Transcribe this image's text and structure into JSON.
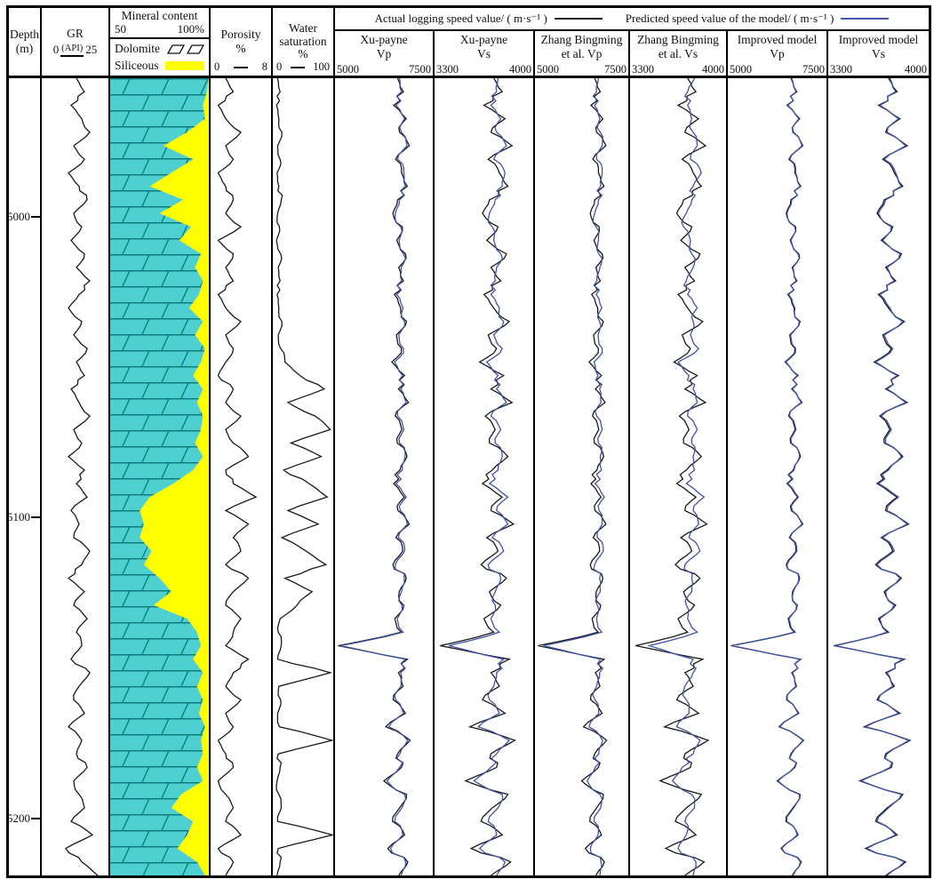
{
  "header": {
    "depth": {
      "line1": "Depth",
      "line2": "(m)"
    },
    "gr": {
      "title": "GR",
      "unit": "(API)",
      "min": "0",
      "max": "25"
    },
    "mineral": {
      "title": "Mineral content",
      "min": "50",
      "max": "100%",
      "dolomite_label": "Dolomite",
      "siliceous_label": "Siliceous"
    },
    "porosity": {
      "line1": "Porosity",
      "line2": "%",
      "min": "0",
      "max": "8"
    },
    "water": {
      "line1": "Water",
      "line2": "saturation",
      "line3": "%",
      "min": "0",
      "max": "100"
    },
    "legend": {
      "actual_label": "Actual logging speed value/ ( m·s⁻¹ )",
      "predicted_label": "Predicted speed value of the model/ ( m·s⁻¹ )"
    },
    "velocity_tracks": [
      {
        "line1": "Xu-payne",
        "line2": "Vp",
        "min": "5000",
        "max": "7500"
      },
      {
        "line1": "Xu-payne",
        "line2": "Vs",
        "min": "3300",
        "max": "4000"
      },
      {
        "line1": "Zhang Bingming",
        "line2": "et al. Vp",
        "min": "5000",
        "max": "7500"
      },
      {
        "line1": "Zhang Bingming",
        "line2": "et al. Vs",
        "min": "3300",
        "max": "4000"
      },
      {
        "line1": "Improved model",
        "line2": "Vp",
        "min": "5000",
        "max": "7500"
      },
      {
        "line1": "Improved model",
        "line2": "Vs",
        "min": "3300",
        "max": "4000"
      }
    ]
  },
  "chart_data": {
    "type": "line",
    "description": "Well-log depth tracks comparing actual logging speed (black) with model-predicted speed (blue) for Xu-payne, Zhang Bingming et al. and improved models",
    "depth_axis": {
      "label": "Depth (m)",
      "top": 4954,
      "bottom": 5219,
      "ticks": [
        5000,
        5100,
        5200
      ]
    },
    "legend": {
      "actual_color": "#1a1a1a",
      "predicted_color": "#4053ab"
    },
    "colors": {
      "dolomite_fill": "#4ed0d0",
      "brick_line": "#0b7d7d",
      "siliceous_fill": "#ffff00"
    },
    "samples": {
      "n": 60,
      "depth_start": 4954,
      "depth_end": 5219
    },
    "tracks": [
      {
        "id": "gr",
        "title": "GR (API)",
        "xlim": [
          0,
          25
        ],
        "curves": [
          {
            "series": "gr",
            "name": "GR",
            "color": "#1a1a1a"
          }
        ]
      },
      {
        "id": "mineral",
        "title": "Mineral content %",
        "xlim": [
          50,
          100
        ],
        "siliceous_series": "siliceous_pct",
        "legend": [
          "Dolomite",
          "Siliceous"
        ]
      },
      {
        "id": "porosity",
        "title": "Porosity %",
        "xlim": [
          0,
          8
        ],
        "curves": [
          {
            "series": "porosity",
            "name": "Porosity",
            "color": "#1a1a1a"
          }
        ]
      },
      {
        "id": "water_saturation",
        "title": "Water saturation %",
        "xlim": [
          0,
          100
        ],
        "curves": [
          {
            "series": "water_saturation",
            "name": "Water saturation",
            "color": "#1a1a1a"
          }
        ]
      },
      {
        "id": "xu_vp",
        "title": "Xu-payne Vp",
        "xlim": [
          5000,
          7500
        ],
        "curves": [
          {
            "series": "vp_actual",
            "name": "Actual Vp",
            "color": "#1a1a1a"
          },
          {
            "series": "vp_pred_xu",
            "name": "Xu-payne predicted Vp",
            "color": "#4053ab"
          }
        ]
      },
      {
        "id": "xu_vs",
        "title": "Xu-payne Vs",
        "xlim": [
          3300,
          4000
        ],
        "curves": [
          {
            "series": "vs_actual",
            "name": "Actual Vs",
            "color": "#1a1a1a"
          },
          {
            "series": "vs_pred_xu",
            "name": "Xu-payne predicted Vs",
            "color": "#4053ab"
          }
        ]
      },
      {
        "id": "zhang_vp",
        "title": "Zhang Bingming et al. Vp",
        "xlim": [
          5000,
          7500
        ],
        "curves": [
          {
            "series": "vp_actual",
            "name": "Actual Vp",
            "color": "#1a1a1a"
          },
          {
            "series": "vp_pred_zhang",
            "name": "Zhang Bingming et al. predicted Vp",
            "color": "#4053ab"
          }
        ]
      },
      {
        "id": "zhang_vs",
        "title": "Zhang Bingming et al. Vs",
        "xlim": [
          3300,
          4000
        ],
        "curves": [
          {
            "series": "vs_actual",
            "name": "Actual Vs",
            "color": "#1a1a1a"
          },
          {
            "series": "vs_pred_zhang",
            "name": "Zhang Bingming et al. predicted Vs",
            "color": "#4053ab"
          }
        ]
      },
      {
        "id": "improved_vp",
        "title": "Improved model Vp",
        "xlim": [
          5000,
          7500
        ],
        "curves": [
          {
            "series": "vp_actual",
            "name": "Actual Vp",
            "color": "#1a1a1a"
          },
          {
            "series": "vp_pred_improved",
            "name": "Improved model predicted Vp",
            "color": "#4053ab"
          }
        ]
      },
      {
        "id": "improved_vs",
        "title": "Improved model Vs",
        "xlim": [
          3300,
          4000
        ],
        "curves": [
          {
            "series": "vs_actual",
            "name": "Actual Vs",
            "color": "#1a1a1a"
          },
          {
            "series": "vs_pred_improved",
            "name": "Improved model predicted Vs",
            "color": "#4053ab"
          }
        ]
      }
    ],
    "series": {
      "gr": [
        13,
        16,
        11,
        15,
        18,
        12,
        16,
        10,
        14,
        17,
        12,
        15,
        11,
        16,
        13,
        18,
        14,
        10,
        15,
        12,
        17,
        13,
        16,
        11,
        14,
        18,
        12,
        15,
        10,
        16,
        13,
        17,
        11,
        14,
        12,
        18,
        15,
        10,
        16,
        12,
        17,
        13,
        15,
        11,
        18,
        14,
        12,
        16,
        10,
        15,
        13,
        17,
        12,
        14,
        16,
        11,
        19,
        9,
        15,
        21
      ],
      "porosity": [
        2,
        3,
        1,
        2,
        4,
        2,
        3,
        1,
        2,
        3,
        2,
        4,
        1,
        3,
        2,
        3,
        1,
        2,
        4,
        2,
        3,
        2,
        1,
        3,
        2,
        4,
        2,
        3,
        5,
        2,
        3,
        6,
        2,
        5,
        3,
        4,
        2,
        5,
        3,
        2,
        4,
        3,
        2,
        5,
        3,
        2,
        4,
        2,
        3,
        1,
        2,
        3,
        1,
        2,
        3,
        2,
        4,
        1,
        3,
        2
      ],
      "water_saturation": [
        8,
        12,
        6,
        10,
        15,
        8,
        12,
        7,
        10,
        14,
        8,
        11,
        6,
        13,
        9,
        12,
        7,
        10,
        15,
        9,
        13,
        20,
        45,
        85,
        25,
        70,
        95,
        30,
        80,
        18,
        60,
        90,
        25,
        75,
        15,
        55,
        88,
        20,
        65,
        40,
        12,
        9,
        14,
        8,
        95,
        10,
        13,
        8,
        11,
        98,
        9,
        12,
        7,
        10,
        14,
        8,
        100,
        9,
        12,
        7
      ],
      "siliceous_pct": [
        0,
        1,
        3,
        2,
        11,
        23,
        8,
        19,
        30,
        13,
        25,
        9,
        15,
        4,
        7,
        3,
        5,
        10,
        3,
        7,
        2,
        4,
        8,
        3,
        6,
        3,
        4,
        7,
        3,
        8,
        18,
        30,
        35,
        33,
        35,
        29,
        33,
        25,
        19,
        28,
        11,
        6,
        4,
        8,
        3,
        6,
        3,
        5,
        2,
        4,
        3,
        6,
        3,
        14,
        19,
        8,
        11,
        16,
        6,
        2
      ],
      "vp_actual": [
        6600,
        6750,
        6500,
        6820,
        6650,
        6900,
        6550,
        6700,
        6850,
        6600,
        6480,
        6720,
        6580,
        6800,
        6630,
        6750,
        6520,
        6680,
        6830,
        6570,
        6700,
        6450,
        6780,
        6620,
        6880,
        6540,
        6710,
        6590,
        6840,
        6660,
        6500,
        6770,
        6610,
        6900,
        6560,
        6730,
        6480,
        6820,
        6640,
        6760,
        6530,
        6690,
        5080,
        6850,
        6620,
        6740,
        6490,
        6800,
        6300,
        6920,
        6600,
        6700,
        6250,
        6830,
        6650,
        6470,
        6780,
        6350,
        6860,
        6630
      ],
      "vp_pred_xu": [
        6650,
        6700,
        6560,
        6780,
        6700,
        6840,
        6600,
        6760,
        6800,
        6650,
        6540,
        6680,
        6640,
        6750,
        6690,
        6700,
        6580,
        6740,
        6780,
        6630,
        6750,
        6520,
        6730,
        6680,
        6820,
        6600,
        6760,
        6650,
        6790,
        6720,
        6560,
        6820,
        6670,
        6850,
        6620,
        6780,
        6540,
        6770,
        6700,
        6710,
        6590,
        6740,
        5150,
        6800,
        6680,
        6690,
        6550,
        6750,
        6380,
        6860,
        6660,
        6650,
        6330,
        6780,
        6710,
        6530,
        6730,
        6420,
        6810,
        6690
      ],
      "vp_pred_zhang": [
        6700,
        6650,
        6600,
        6740,
        6750,
        6800,
        6650,
        6800,
        6760,
        6700,
        6600,
        6640,
        6700,
        6710,
        6740,
        6660,
        6640,
        6790,
        6730,
        6690,
        6800,
        6580,
        6690,
        6730,
        6770,
        6650,
        6800,
        6700,
        6750,
        6780,
        6610,
        6860,
        6720,
        6800,
        6670,
        6830,
        6600,
        6730,
        6750,
        6670,
        6650,
        6790,
        5230,
        6760,
        6730,
        6650,
        6610,
        6710,
        6450,
        6810,
        6710,
        6610,
        6400,
        6740,
        6760,
        6580,
        6690,
        6480,
        6770,
        6740
      ],
      "vp_pred_improved": [
        6620,
        6730,
        6520,
        6800,
        6670,
        6880,
        6570,
        6720,
        6830,
        6620,
        6500,
        6700,
        6600,
        6780,
        6650,
        6730,
        6540,
        6700,
        6810,
        6590,
        6720,
        6470,
        6760,
        6640,
        6860,
        6560,
        6730,
        6610,
        6820,
        6680,
        6520,
        6790,
        6630,
        6880,
        6580,
        6750,
        6500,
        6800,
        6660,
        6740,
        6550,
        6710,
        5110,
        6830,
        6640,
        6720,
        6510,
        6780,
        6320,
        6900,
        6620,
        6680,
        6270,
        6810,
        6670,
        6490,
        6760,
        6370,
        6840,
        6650
      ],
      "vs_actual": [
        3720,
        3780,
        3650,
        3800,
        3700,
        3850,
        3680,
        3760,
        3820,
        3690,
        3640,
        3750,
        3670,
        3810,
        3700,
        3770,
        3650,
        3720,
        3830,
        3680,
        3740,
        3620,
        3790,
        3700,
        3850,
        3660,
        3730,
        3690,
        3820,
        3710,
        3640,
        3780,
        3700,
        3860,
        3670,
        3750,
        3630,
        3810,
        3690,
        3770,
        3650,
        3720,
        3340,
        3830,
        3700,
        3760,
        3640,
        3800,
        3550,
        3870,
        3700,
        3740,
        3520,
        3820,
        3710,
        3630,
        3780,
        3560,
        3840,
        3700
      ],
      "vs_pred_xu": [
        3750,
        3740,
        3700,
        3770,
        3740,
        3810,
        3720,
        3800,
        3780,
        3730,
        3690,
        3710,
        3720,
        3770,
        3740,
        3730,
        3700,
        3760,
        3790,
        3720,
        3780,
        3670,
        3750,
        3740,
        3810,
        3700,
        3770,
        3730,
        3780,
        3750,
        3690,
        3820,
        3740,
        3820,
        3710,
        3790,
        3680,
        3770,
        3730,
        3730,
        3700,
        3760,
        3400,
        3790,
        3740,
        3720,
        3690,
        3760,
        3610,
        3830,
        3740,
        3700,
        3580,
        3780,
        3750,
        3680,
        3740,
        3620,
        3800,
        3740
      ],
      "vs_pred_zhang": [
        3770,
        3720,
        3720,
        3750,
        3760,
        3790,
        3740,
        3820,
        3760,
        3750,
        3710,
        3690,
        3740,
        3750,
        3760,
        3710,
        3720,
        3790,
        3760,
        3740,
        3800,
        3650,
        3730,
        3760,
        3790,
        3720,
        3790,
        3750,
        3760,
        3770,
        3710,
        3840,
        3760,
        3800,
        3730,
        3810,
        3700,
        3750,
        3750,
        3710,
        3720,
        3790,
        3440,
        3760,
        3760,
        3700,
        3710,
        3730,
        3640,
        3810,
        3760,
        3680,
        3610,
        3750,
        3770,
        3700,
        3710,
        3650,
        3780,
        3760
      ],
      "vs_pred_improved": [
        3730,
        3770,
        3660,
        3790,
        3710,
        3840,
        3690,
        3770,
        3810,
        3700,
        3650,
        3740,
        3680,
        3800,
        3710,
        3760,
        3660,
        3730,
        3820,
        3690,
        3750,
        3630,
        3780,
        3710,
        3840,
        3670,
        3740,
        3700,
        3810,
        3720,
        3650,
        3790,
        3710,
        3850,
        3680,
        3760,
        3640,
        3800,
        3700,
        3760,
        3660,
        3710,
        3350,
        3820,
        3710,
        3750,
        3650,
        3790,
        3560,
        3860,
        3710,
        3730,
        3530,
        3810,
        3720,
        3640,
        3770,
        3570,
        3830,
        3710
      ]
    }
  }
}
